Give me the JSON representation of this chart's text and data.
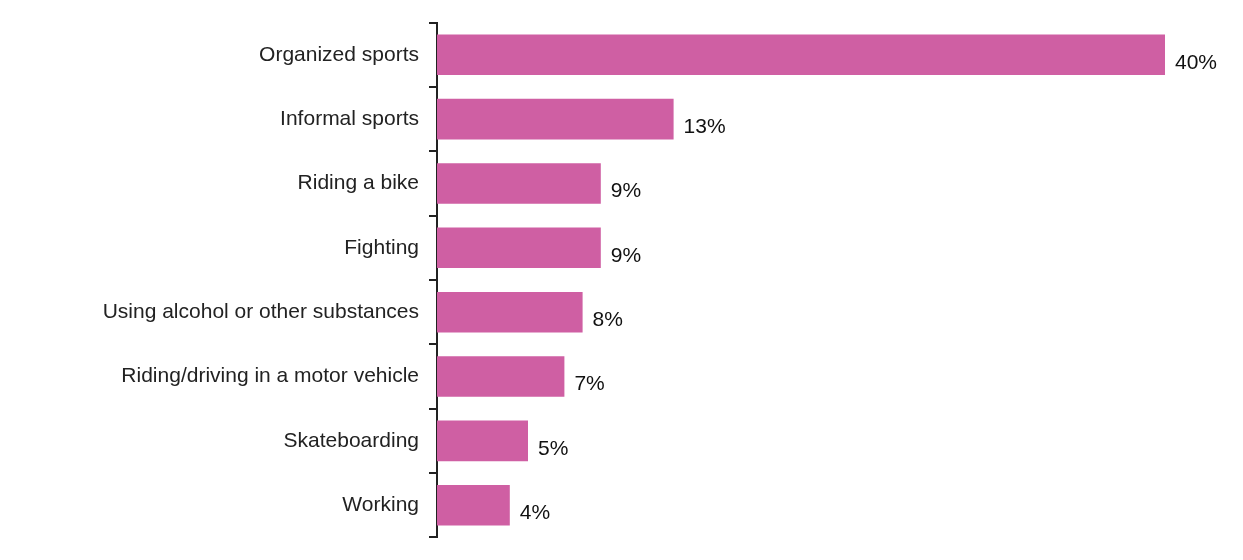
{
  "chart_data": {
    "type": "bar",
    "orientation": "horizontal",
    "categories": [
      "Organized sports",
      "Informal sports",
      "Riding a bike",
      "Fighting",
      "Using alcohol or other substances",
      "Riding/driving in a motor vehicle",
      "Skateboarding",
      "Working"
    ],
    "values": [
      40,
      13,
      9,
      9,
      8,
      7,
      5,
      4
    ],
    "value_labels": [
      "40%",
      "13%",
      "9%",
      "9%",
      "8%",
      "7%",
      "5%",
      "4%"
    ],
    "color": "#cf5fa3",
    "legend": false,
    "grid": false
  }
}
